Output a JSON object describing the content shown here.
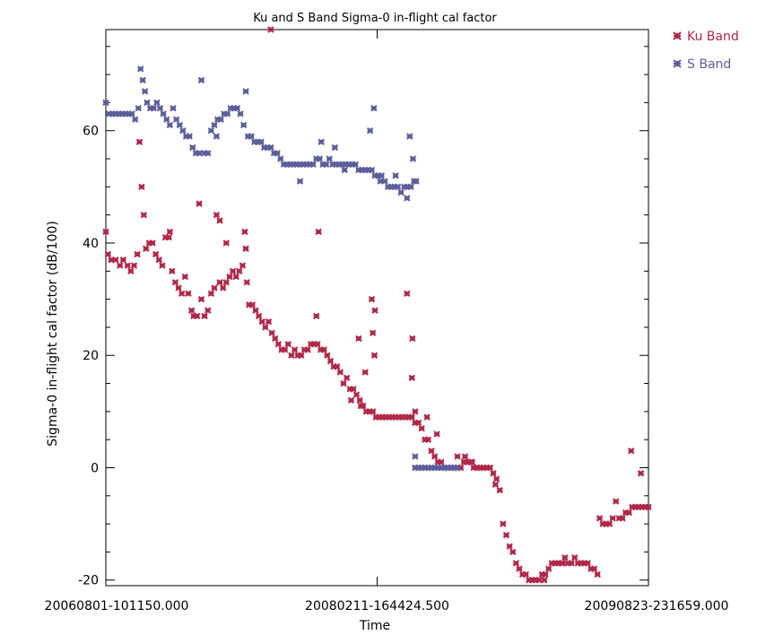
{
  "chart_data": {
    "type": "scatter",
    "title": "Ku and S Band Sigma-0 in-flight cal factor",
    "xlabel": "Time",
    "ylabel": "Sigma-0 in-flight cal factor (dB/100)",
    "xlim": [
      0,
      100
    ],
    "ylim": [
      -21,
      78
    ],
    "x_tick_labels": [
      "20060801-101150.000",
      "20080211-164424.500",
      "20090823-231659.000"
    ],
    "y_ticks": [
      -20,
      0,
      20,
      40,
      60
    ],
    "legend_position": "top-right",
    "series": [
      {
        "name": "Ku Band",
        "color": "#b0284a",
        "points": [
          [
            0,
            42
          ],
          [
            0.4,
            38
          ],
          [
            1.0,
            37
          ],
          [
            1.8,
            37
          ],
          [
            2.6,
            36
          ],
          [
            3.2,
            37
          ],
          [
            4.0,
            36
          ],
          [
            4.6,
            35
          ],
          [
            5.2,
            36
          ],
          [
            5.8,
            38
          ],
          [
            6.2,
            58
          ],
          [
            6.6,
            50
          ],
          [
            7.0,
            45
          ],
          [
            7.4,
            39
          ],
          [
            8.0,
            40
          ],
          [
            8.6,
            40
          ],
          [
            9.2,
            38
          ],
          [
            9.8,
            37
          ],
          [
            10.4,
            36
          ],
          [
            11.0,
            41
          ],
          [
            11.6,
            41
          ],
          [
            12.2,
            35
          ],
          [
            12.8,
            33
          ],
          [
            13.4,
            32
          ],
          [
            14.0,
            31
          ],
          [
            14.6,
            34
          ],
          [
            15.2,
            31
          ],
          [
            15.8,
            28
          ],
          [
            16.2,
            27
          ],
          [
            16.8,
            27
          ],
          [
            17.2,
            47
          ],
          [
            17.6,
            30
          ],
          [
            18.2,
            27
          ],
          [
            18.8,
            28
          ],
          [
            19.4,
            31
          ],
          [
            20.0,
            32
          ],
          [
            20.4,
            45
          ],
          [
            21.0,
            33
          ],
          [
            21.6,
            32
          ],
          [
            22.2,
            33
          ],
          [
            22.8,
            34
          ],
          [
            23.4,
            35
          ],
          [
            24.0,
            34
          ],
          [
            24.6,
            35
          ],
          [
            25.2,
            36
          ],
          [
            25.6,
            42
          ],
          [
            26.0,
            33
          ],
          [
            26.4,
            29
          ],
          [
            27.0,
            29
          ],
          [
            27.6,
            28
          ],
          [
            28.2,
            27
          ],
          [
            28.8,
            26
          ],
          [
            29.4,
            25
          ],
          [
            30.0,
            26
          ],
          [
            30.6,
            24
          ],
          [
            31.2,
            23
          ],
          [
            31.8,
            22
          ],
          [
            32.4,
            21
          ],
          [
            33.0,
            21
          ],
          [
            33.6,
            22
          ],
          [
            34.2,
            20
          ],
          [
            34.8,
            21
          ],
          [
            35.4,
            20
          ],
          [
            36.0,
            20
          ],
          [
            36.6,
            21
          ],
          [
            37.2,
            21
          ],
          [
            37.8,
            22
          ],
          [
            38.4,
            22
          ],
          [
            39.0,
            22
          ],
          [
            39.6,
            21
          ],
          [
            40.2,
            21
          ],
          [
            40.8,
            20
          ],
          [
            41.4,
            19
          ],
          [
            42.0,
            18
          ],
          [
            42.6,
            18
          ],
          [
            43.2,
            17
          ],
          [
            43.8,
            15
          ],
          [
            44.4,
            16
          ],
          [
            45.0,
            14
          ],
          [
            45.6,
            14
          ],
          [
            46.2,
            13
          ],
          [
            46.8,
            12
          ],
          [
            47.4,
            11
          ],
          [
            48.0,
            10
          ],
          [
            48.6,
            10
          ],
          [
            49.2,
            10
          ],
          [
            49.8,
            9
          ],
          [
            50.4,
            9
          ],
          [
            51.0,
            9
          ],
          [
            51.6,
            9
          ],
          [
            52.2,
            9
          ],
          [
            52.8,
            9
          ],
          [
            53.4,
            9
          ],
          [
            54.0,
            9
          ],
          [
            54.6,
            9
          ],
          [
            55.2,
            9
          ],
          [
            55.8,
            9
          ],
          [
            56.4,
            9
          ],
          [
            57.0,
            8
          ],
          [
            57.6,
            8
          ],
          [
            58.2,
            7
          ],
          [
            58.8,
            5
          ],
          [
            59.4,
            5
          ],
          [
            60.0,
            3
          ],
          [
            60.6,
            2
          ],
          [
            61.2,
            1
          ],
          [
            61.8,
            1
          ],
          [
            62.4,
            0
          ],
          [
            63.0,
            0
          ],
          [
            63.6,
            0
          ],
          [
            64.2,
            0
          ],
          [
            64.8,
            0
          ],
          [
            65.4,
            0
          ],
          [
            66.0,
            1
          ],
          [
            66.6,
            1
          ],
          [
            67.2,
            1
          ],
          [
            67.8,
            0
          ],
          [
            68.4,
            0
          ],
          [
            69.0,
            0
          ],
          [
            69.6,
            0
          ],
          [
            70.2,
            0
          ],
          [
            70.8,
            0
          ],
          [
            71.4,
            -1
          ],
          [
            72.0,
            -2
          ],
          [
            72.6,
            -4
          ],
          [
            73.2,
            -10
          ],
          [
            73.8,
            -12
          ],
          [
            74.4,
            -14
          ],
          [
            75.0,
            -15
          ],
          [
            75.6,
            -17
          ],
          [
            76.2,
            -18
          ],
          [
            76.8,
            -19
          ],
          [
            77.4,
            -19
          ],
          [
            78.0,
            -20
          ],
          [
            78.6,
            -20
          ],
          [
            79.2,
            -20
          ],
          [
            79.8,
            -20
          ],
          [
            80.4,
            -19
          ],
          [
            81.0,
            -19
          ],
          [
            81.6,
            -18
          ],
          [
            82.2,
            -17
          ],
          [
            82.8,
            -17
          ],
          [
            83.4,
            -17
          ],
          [
            84.0,
            -17
          ],
          [
            84.6,
            -16
          ],
          [
            85.2,
            -17
          ],
          [
            85.8,
            -17
          ],
          [
            86.4,
            -16
          ],
          [
            87.0,
            -17
          ],
          [
            87.6,
            -17
          ],
          [
            88.2,
            -17
          ],
          [
            88.8,
            -17
          ],
          [
            89.4,
            -18
          ],
          [
            90.0,
            -18
          ],
          [
            90.6,
            -19
          ],
          [
            91.0,
            -9
          ],
          [
            91.6,
            -10
          ],
          [
            92.2,
            -10
          ],
          [
            92.8,
            -10
          ],
          [
            93.4,
            -9
          ],
          [
            94.0,
            -6
          ],
          [
            94.6,
            -9
          ],
          [
            95.2,
            -9
          ],
          [
            95.8,
            -8
          ],
          [
            96.4,
            -8
          ],
          [
            97.0,
            -7
          ],
          [
            97.6,
            -7
          ],
          [
            98.2,
            -7
          ],
          [
            98.8,
            -7
          ],
          [
            99.4,
            -7
          ],
          [
            100.0,
            -7
          ],
          [
            96.8,
            3
          ],
          [
            98.6,
            -1
          ],
          [
            30.4,
            78
          ],
          [
            11.8,
            42
          ],
          [
            21.0,
            44
          ],
          [
            22.2,
            40
          ],
          [
            25.8,
            39
          ],
          [
            57.0,
            10
          ],
          [
            45.2,
            12
          ],
          [
            47.8,
            17
          ],
          [
            55.5,
            31
          ],
          [
            61.0,
            6
          ],
          [
            66.2,
            2
          ],
          [
            56.4,
            16
          ],
          [
            56.5,
            23
          ],
          [
            49.0,
            30
          ],
          [
            49.2,
            24
          ],
          [
            49.6,
            28
          ],
          [
            39.2,
            42
          ],
          [
            38.8,
            27
          ],
          [
            46.6,
            23
          ],
          [
            47.0,
            11
          ],
          [
            49.5,
            20
          ],
          [
            59.2,
            9
          ],
          [
            64.8,
            2
          ],
          [
            67.5,
            1
          ],
          [
            71.8,
            -3
          ],
          [
            80.8,
            -20
          ],
          [
            84.2,
            -17
          ]
        ]
      },
      {
        "name": "S Band",
        "color": "#5d5e9a",
        "points": [
          [
            0,
            65
          ],
          [
            0.6,
            63
          ],
          [
            1.2,
            63
          ],
          [
            1.8,
            63
          ],
          [
            2.4,
            63
          ],
          [
            3.0,
            63
          ],
          [
            3.6,
            63
          ],
          [
            4.2,
            63
          ],
          [
            4.8,
            63
          ],
          [
            5.4,
            62
          ],
          [
            6.0,
            64
          ],
          [
            6.4,
            71
          ],
          [
            6.8,
            69
          ],
          [
            7.2,
            67
          ],
          [
            7.6,
            65
          ],
          [
            8.2,
            64
          ],
          [
            8.8,
            64
          ],
          [
            9.4,
            65
          ],
          [
            10.0,
            64
          ],
          [
            10.6,
            63
          ],
          [
            11.2,
            62
          ],
          [
            11.8,
            61
          ],
          [
            12.4,
            64
          ],
          [
            13.0,
            62
          ],
          [
            13.6,
            61
          ],
          [
            14.2,
            60
          ],
          [
            14.8,
            59
          ],
          [
            15.4,
            59
          ],
          [
            16.0,
            57
          ],
          [
            16.6,
            56
          ],
          [
            17.2,
            56
          ],
          [
            17.6,
            69
          ],
          [
            18.2,
            56
          ],
          [
            18.8,
            56
          ],
          [
            19.4,
            60
          ],
          [
            20.0,
            61
          ],
          [
            20.6,
            62
          ],
          [
            21.2,
            62
          ],
          [
            21.8,
            63
          ],
          [
            22.4,
            63
          ],
          [
            23.0,
            64
          ],
          [
            23.6,
            64
          ],
          [
            24.2,
            64
          ],
          [
            24.8,
            63
          ],
          [
            25.4,
            61
          ],
          [
            25.8,
            67
          ],
          [
            26.2,
            59
          ],
          [
            26.8,
            59
          ],
          [
            27.4,
            58
          ],
          [
            28.0,
            58
          ],
          [
            28.6,
            58
          ],
          [
            29.2,
            57
          ],
          [
            29.8,
            57
          ],
          [
            30.4,
            57
          ],
          [
            31.0,
            56
          ],
          [
            31.6,
            56
          ],
          [
            32.2,
            55
          ],
          [
            32.8,
            54
          ],
          [
            33.4,
            54
          ],
          [
            34.0,
            54
          ],
          [
            34.6,
            54
          ],
          [
            35.2,
            54
          ],
          [
            35.8,
            54
          ],
          [
            36.4,
            54
          ],
          [
            37.0,
            54
          ],
          [
            37.6,
            54
          ],
          [
            38.2,
            54
          ],
          [
            38.8,
            55
          ],
          [
            39.4,
            55
          ],
          [
            40.0,
            54
          ],
          [
            40.6,
            54
          ],
          [
            41.2,
            55
          ],
          [
            41.8,
            54
          ],
          [
            42.4,
            54
          ],
          [
            43.0,
            54
          ],
          [
            43.6,
            54
          ],
          [
            44.2,
            54
          ],
          [
            44.8,
            54
          ],
          [
            45.4,
            54
          ],
          [
            46.0,
            54
          ],
          [
            46.6,
            53
          ],
          [
            47.2,
            53
          ],
          [
            47.8,
            53
          ],
          [
            48.4,
            53
          ],
          [
            49.0,
            53
          ],
          [
            49.6,
            52
          ],
          [
            50.2,
            52
          ],
          [
            50.8,
            52
          ],
          [
            51.4,
            51
          ],
          [
            52.0,
            50
          ],
          [
            52.6,
            50
          ],
          [
            53.2,
            50
          ],
          [
            53.8,
            50
          ],
          [
            54.4,
            49
          ],
          [
            55.0,
            50
          ],
          [
            55.6,
            50
          ],
          [
            56.2,
            50
          ],
          [
            56.8,
            51
          ],
          [
            57.2,
            51
          ],
          [
            49.4,
            64
          ],
          [
            56.0,
            59
          ],
          [
            56.6,
            55
          ],
          [
            48.7,
            60
          ],
          [
            39.7,
            58
          ],
          [
            42.2,
            57
          ],
          [
            20.4,
            59
          ],
          [
            35.8,
            51
          ],
          [
            50.6,
            51
          ],
          [
            44.0,
            53
          ],
          [
            53.4,
            52
          ],
          [
            55.5,
            48
          ],
          [
            57.0,
            2
          ],
          [
            57.0,
            0
          ],
          [
            57.6,
            0
          ],
          [
            58.2,
            0
          ],
          [
            58.8,
            0
          ],
          [
            59.4,
            0
          ],
          [
            60.0,
            0
          ],
          [
            60.6,
            0
          ],
          [
            61.2,
            0
          ],
          [
            61.8,
            0
          ],
          [
            62.4,
            0
          ],
          [
            63.0,
            0
          ],
          [
            63.6,
            0
          ],
          [
            64.2,
            0
          ],
          [
            64.8,
            0
          ]
        ]
      }
    ]
  }
}
